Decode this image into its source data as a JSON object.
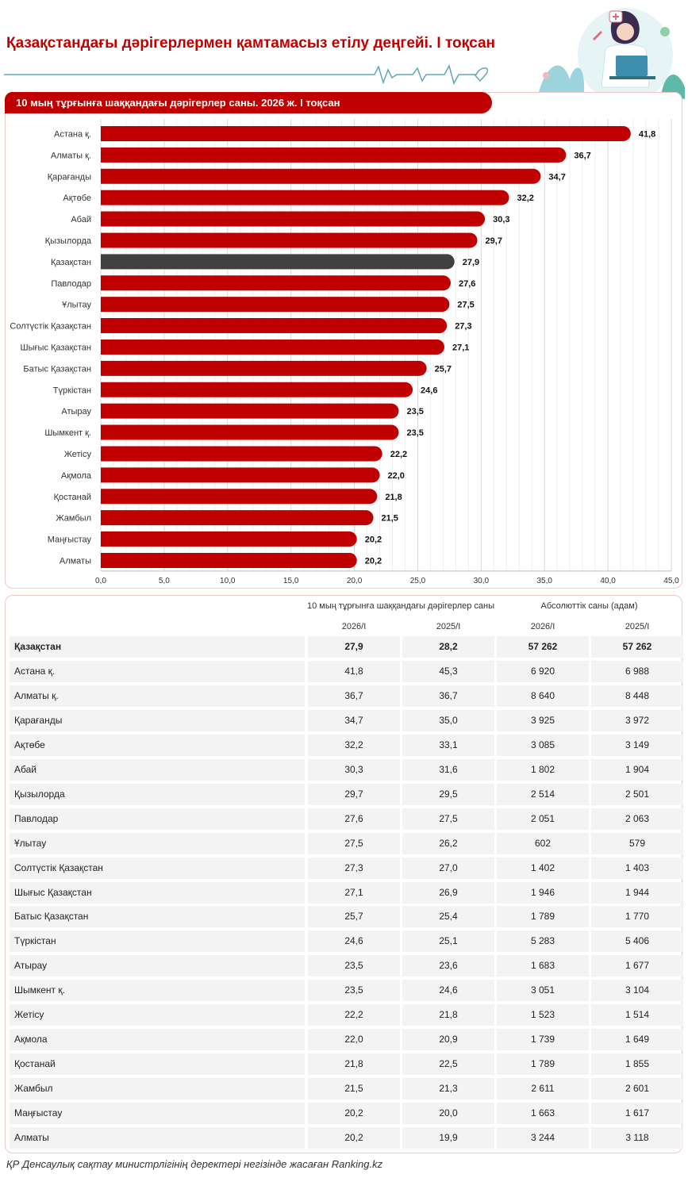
{
  "title": "Қазақстандағы дәрігерлермен қамтамасыз етілу деңгейі. I тоқсан",
  "chart_data": {
    "type": "bar",
    "orientation": "horizontal",
    "title": "10 мың тұрғынға шаққандағы дәрігерлер саны. 2026 ж. I тоқсан",
    "categories": [
      "Астана қ.",
      "Алматы қ.",
      "Қарағанды",
      "Ақтөбе",
      "Абай",
      "Қызылорда",
      "Қазақстан",
      "Павлодар",
      "Ұлытау",
      "Солтүстік Қазақстан",
      "Шығыс Қазақстан",
      "Батыс Қазақстан",
      "Түркістан",
      "Атырау",
      "Шымкент қ.",
      "Жетісу",
      "Ақмола",
      "Қостанай",
      "Жамбыл",
      "Маңғыстау",
      "Алматы"
    ],
    "values": [
      41.8,
      36.7,
      34.7,
      32.2,
      30.3,
      29.7,
      27.9,
      27.6,
      27.5,
      27.3,
      27.1,
      25.7,
      24.6,
      23.5,
      23.5,
      22.2,
      22.0,
      21.8,
      21.5,
      20.2,
      20.2
    ],
    "value_labels": [
      "41,8",
      "36,7",
      "34,7",
      "32,2",
      "30,3",
      "29,7",
      "27,9",
      "27,6",
      "27,5",
      "27,3",
      "27,1",
      "25,7",
      "24,6",
      "23,5",
      "23,5",
      "22,2",
      "22,0",
      "21,8",
      "21,5",
      "20,2",
      "20,2"
    ],
    "highlight_category": "Қазақстан",
    "xlim": [
      0,
      45
    ],
    "x_ticks": [
      0,
      5,
      10,
      15,
      20,
      25,
      30,
      35,
      40,
      45
    ],
    "x_tick_labels": [
      "0,0",
      "5,0",
      "10,0",
      "15,0",
      "20,0",
      "25,0",
      "30,0",
      "35,0",
      "40,0",
      "45,0"
    ],
    "grid": true,
    "colors": {
      "bar": "#c00000",
      "highlight": "#404040"
    }
  },
  "table": {
    "group_headers": [
      "10 мың тұрғынға шаққандағы дәрігерлер саны",
      "Абсолюттік саны (адам)"
    ],
    "sub_headers": [
      "2026/I",
      "2025/I",
      "2026/I",
      "2025/I"
    ],
    "rows": [
      {
        "name": "Қазақстан",
        "v1": "27,9",
        "v2": "28,2",
        "v3": "57 262",
        "v4": "57 262",
        "bold": true
      },
      {
        "name": "Астана қ.",
        "v1": "41,8",
        "v2": "45,3",
        "v3": "6 920",
        "v4": "6 988"
      },
      {
        "name": "Алматы қ.",
        "v1": "36,7",
        "v2": "36,7",
        "v3": "8 640",
        "v4": "8 448"
      },
      {
        "name": "Қарағанды",
        "v1": "34,7",
        "v2": "35,0",
        "v3": "3 925",
        "v4": "3 972"
      },
      {
        "name": "Ақтөбе",
        "v1": "32,2",
        "v2": "33,1",
        "v3": "3 085",
        "v4": "3 149"
      },
      {
        "name": "Абай",
        "v1": "30,3",
        "v2": "31,6",
        "v3": "1 802",
        "v4": "1 904"
      },
      {
        "name": "Қызылорда",
        "v1": "29,7",
        "v2": "29,5",
        "v3": "2 514",
        "v4": "2 501"
      },
      {
        "name": "Павлодар",
        "v1": "27,6",
        "v2": "27,5",
        "v3": "2 051",
        "v4": "2 063"
      },
      {
        "name": "Ұлытау",
        "v1": "27,5",
        "v2": "26,2",
        "v3": "602",
        "v4": "579"
      },
      {
        "name": "Солтүстік Қазақстан",
        "v1": "27,3",
        "v2": "27,0",
        "v3": "1 402",
        "v4": "1 403"
      },
      {
        "name": "Шығыс Қазақстан",
        "v1": "27,1",
        "v2": "26,9",
        "v3": "1 946",
        "v4": "1 944"
      },
      {
        "name": "Батыс Қазақстан",
        "v1": "25,7",
        "v2": "25,4",
        "v3": "1 789",
        "v4": "1 770"
      },
      {
        "name": "Түркістан",
        "v1": "24,6",
        "v2": "25,1",
        "v3": "5 283",
        "v4": "5 406"
      },
      {
        "name": "Атырау",
        "v1": "23,5",
        "v2": "23,6",
        "v3": "1 683",
        "v4": "1 677"
      },
      {
        "name": "Шымкент қ.",
        "v1": "23,5",
        "v2": "24,6",
        "v3": "3 051",
        "v4": "3 104"
      },
      {
        "name": "Жетісу",
        "v1": "22,2",
        "v2": "21,8",
        "v3": "1 523",
        "v4": "1 514"
      },
      {
        "name": "Ақмола",
        "v1": "22,0",
        "v2": "20,9",
        "v3": "1 739",
        "v4": "1 649"
      },
      {
        "name": "Қостанай",
        "v1": "21,8",
        "v2": "22,5",
        "v3": "1 789",
        "v4": "1 855"
      },
      {
        "name": "Жамбыл",
        "v1": "21,5",
        "v2": "21,3",
        "v3": "2 611",
        "v4": "2 601"
      },
      {
        "name": "Маңғыстау",
        "v1": "20,2",
        "v2": "20,0",
        "v3": "1 663",
        "v4": "1 617"
      },
      {
        "name": "Алматы",
        "v1": "20,2",
        "v2": "19,9",
        "v3": "3 244",
        "v4": "3 118"
      }
    ]
  },
  "footer": "ҚР Денсаулық сақтау министрлігінің деректері негізінде жасаған Ranking.kz",
  "colors": {
    "accent": "#c00000",
    "line": "#5fa8b8"
  },
  "illustration_icon": "doctor-with-laptop-illustration"
}
